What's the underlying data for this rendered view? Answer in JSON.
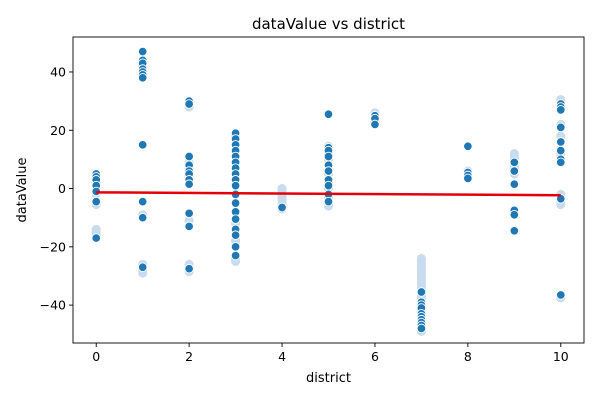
{
  "chart_data": {
    "type": "scatter",
    "title": "dataValue vs district",
    "xlabel": "district",
    "ylabel": "dataValue",
    "xlim": [
      -0.5,
      10.5
    ],
    "ylim": [
      -53,
      52
    ],
    "xticks": [
      0,
      2,
      4,
      6,
      8,
      10
    ],
    "yticks": [
      -40,
      -20,
      0,
      20,
      40
    ],
    "grid": false,
    "colors": {
      "points": "#1f77b4",
      "point_edge": "#ffffff",
      "faint_points": "#c9dcee",
      "trend_line": "#e3000b"
    },
    "points": [
      {
        "x": 0,
        "y": 5
      },
      {
        "x": 0,
        "y": 4
      },
      {
        "x": 0,
        "y": 3
      },
      {
        "x": 0,
        "y": 1
      },
      {
        "x": 0,
        "y": -1
      },
      {
        "x": 0,
        "y": -4.5
      },
      {
        "x": 0,
        "y": -17
      },
      {
        "x": 1,
        "y": 47
      },
      {
        "x": 1,
        "y": 44
      },
      {
        "x": 1,
        "y": 43
      },
      {
        "x": 1,
        "y": 41
      },
      {
        "x": 1,
        "y": 40
      },
      {
        "x": 1,
        "y": 39
      },
      {
        "x": 1,
        "y": 38
      },
      {
        "x": 1,
        "y": 15
      },
      {
        "x": 1,
        "y": -4.5
      },
      {
        "x": 1,
        "y": -10
      },
      {
        "x": 1,
        "y": -27
      },
      {
        "x": 2,
        "y": 30
      },
      {
        "x": 2,
        "y": 29
      },
      {
        "x": 2,
        "y": 11
      },
      {
        "x": 2,
        "y": 8
      },
      {
        "x": 2,
        "y": 6
      },
      {
        "x": 2,
        "y": 5
      },
      {
        "x": 2,
        "y": 3
      },
      {
        "x": 2,
        "y": 1.5
      },
      {
        "x": 2,
        "y": -8.5
      },
      {
        "x": 2,
        "y": -13
      },
      {
        "x": 2,
        "y": -27.5
      },
      {
        "x": 3,
        "y": 19
      },
      {
        "x": 3,
        "y": 17
      },
      {
        "x": 3,
        "y": 15
      },
      {
        "x": 3,
        "y": 13
      },
      {
        "x": 3,
        "y": 11
      },
      {
        "x": 3,
        "y": 9
      },
      {
        "x": 3,
        "y": 7
      },
      {
        "x": 3,
        "y": 5
      },
      {
        "x": 3,
        "y": 3
      },
      {
        "x": 3,
        "y": 1
      },
      {
        "x": 3,
        "y": -2
      },
      {
        "x": 3,
        "y": -5
      },
      {
        "x": 3,
        "y": -8
      },
      {
        "x": 3,
        "y": -10.5
      },
      {
        "x": 3,
        "y": -14
      },
      {
        "x": 3,
        "y": -16
      },
      {
        "x": 3,
        "y": -20
      },
      {
        "x": 3,
        "y": -23
      },
      {
        "x": 4,
        "y": -6.5
      },
      {
        "x": 5,
        "y": 25.5
      },
      {
        "x": 5,
        "y": 14
      },
      {
        "x": 5,
        "y": 13
      },
      {
        "x": 5,
        "y": 11
      },
      {
        "x": 5,
        "y": 8
      },
      {
        "x": 5,
        "y": 6
      },
      {
        "x": 5,
        "y": 3
      },
      {
        "x": 5,
        "y": 1
      },
      {
        "x": 5,
        "y": -2
      },
      {
        "x": 5,
        "y": -4.5
      },
      {
        "x": 6,
        "y": 25
      },
      {
        "x": 6,
        "y": 24
      },
      {
        "x": 6,
        "y": 22
      },
      {
        "x": 7,
        "y": -35.5
      },
      {
        "x": 7,
        "y": -39
      },
      {
        "x": 7,
        "y": -40
      },
      {
        "x": 7,
        "y": -41
      },
      {
        "x": 7,
        "y": -43
      },
      {
        "x": 7,
        "y": -44
      },
      {
        "x": 7,
        "y": -45
      },
      {
        "x": 7,
        "y": -46
      },
      {
        "x": 7,
        "y": -47
      },
      {
        "x": 7,
        "y": -48
      },
      {
        "x": 8,
        "y": 14.5
      },
      {
        "x": 8,
        "y": 5.5
      },
      {
        "x": 8,
        "y": 4.5
      },
      {
        "x": 8,
        "y": 3.5
      },
      {
        "x": 9,
        "y": 9
      },
      {
        "x": 9,
        "y": 6
      },
      {
        "x": 9,
        "y": 1.5
      },
      {
        "x": 9,
        "y": -7.5
      },
      {
        "x": 9,
        "y": -9
      },
      {
        "x": 9,
        "y": -14.5
      },
      {
        "x": 10,
        "y": 29
      },
      {
        "x": 10,
        "y": 28
      },
      {
        "x": 10,
        "y": 27
      },
      {
        "x": 10,
        "y": 21
      },
      {
        "x": 10,
        "y": 16
      },
      {
        "x": 10,
        "y": 13
      },
      {
        "x": 10,
        "y": 10
      },
      {
        "x": 10,
        "y": 9
      },
      {
        "x": 10,
        "y": -3.5
      },
      {
        "x": 10,
        "y": -36.5
      }
    ],
    "faint_points": [
      {
        "x": 0,
        "y": -14
      },
      {
        "x": 0,
        "y": -15
      },
      {
        "x": 0,
        "y": -16
      },
      {
        "x": 0,
        "y": 2
      },
      {
        "x": 0,
        "y": -2
      },
      {
        "x": 0,
        "y": -5.5
      },
      {
        "x": 1,
        "y": -26
      },
      {
        "x": 1,
        "y": -28
      },
      {
        "x": 1,
        "y": -29
      },
      {
        "x": 1,
        "y": -9
      },
      {
        "x": 1,
        "y": 42
      },
      {
        "x": 2,
        "y": -26
      },
      {
        "x": 2,
        "y": -28.5
      },
      {
        "x": 2,
        "y": -11
      },
      {
        "x": 2,
        "y": 28
      },
      {
        "x": 2,
        "y": 9
      },
      {
        "x": 2,
        "y": 7
      },
      {
        "x": 2,
        "y": 4
      },
      {
        "x": 3,
        "y": -24
      },
      {
        "x": 3,
        "y": -25
      },
      {
        "x": 3,
        "y": -18
      },
      {
        "x": 3,
        "y": -12
      },
      {
        "x": 3,
        "y": 18
      },
      {
        "x": 4,
        "y": 0
      },
      {
        "x": 4,
        "y": -1
      },
      {
        "x": 4,
        "y": -2
      },
      {
        "x": 4,
        "y": -3
      },
      {
        "x": 4,
        "y": -4
      },
      {
        "x": 4,
        "y": -5
      },
      {
        "x": 4,
        "y": -7
      },
      {
        "x": 5,
        "y": -6
      },
      {
        "x": 5,
        "y": -3
      },
      {
        "x": 5,
        "y": 0
      },
      {
        "x": 5,
        "y": 2
      },
      {
        "x": 5,
        "y": 5
      },
      {
        "x": 5,
        "y": 10
      },
      {
        "x": 5,
        "y": 12
      },
      {
        "x": 5,
        "y": 14.5
      },
      {
        "x": 6,
        "y": 26
      },
      {
        "x": 6,
        "y": 23
      },
      {
        "x": 7,
        "y": -24
      },
      {
        "x": 7,
        "y": -25
      },
      {
        "x": 7,
        "y": -26
      },
      {
        "x": 7,
        "y": -27
      },
      {
        "x": 7,
        "y": -28
      },
      {
        "x": 7,
        "y": -29
      },
      {
        "x": 7,
        "y": -30
      },
      {
        "x": 7,
        "y": -31
      },
      {
        "x": 7,
        "y": -32
      },
      {
        "x": 7,
        "y": -33
      },
      {
        "x": 7,
        "y": -34
      },
      {
        "x": 7,
        "y": -36
      },
      {
        "x": 7,
        "y": -37
      },
      {
        "x": 7,
        "y": -38
      },
      {
        "x": 7,
        "y": -42
      },
      {
        "x": 7,
        "y": -49
      },
      {
        "x": 8,
        "y": 6
      },
      {
        "x": 8,
        "y": 4
      },
      {
        "x": 9,
        "y": 12
      },
      {
        "x": 9,
        "y": 11
      },
      {
        "x": 9,
        "y": 10
      },
      {
        "x": 9,
        "y": 8
      },
      {
        "x": 9,
        "y": 7
      },
      {
        "x": 9,
        "y": 5
      },
      {
        "x": 9,
        "y": -8
      },
      {
        "x": 10,
        "y": 30.5
      },
      {
        "x": 10,
        "y": 22
      },
      {
        "x": 10,
        "y": 18
      },
      {
        "x": 10,
        "y": 12
      },
      {
        "x": 10,
        "y": -2
      },
      {
        "x": 10,
        "y": -4.5
      },
      {
        "x": 10,
        "y": -5.5
      },
      {
        "x": 10,
        "y": -37.5
      }
    ],
    "trend_line": [
      {
        "x": 0,
        "y": -1.3
      },
      {
        "x": 10,
        "y": -2.3
      }
    ]
  }
}
